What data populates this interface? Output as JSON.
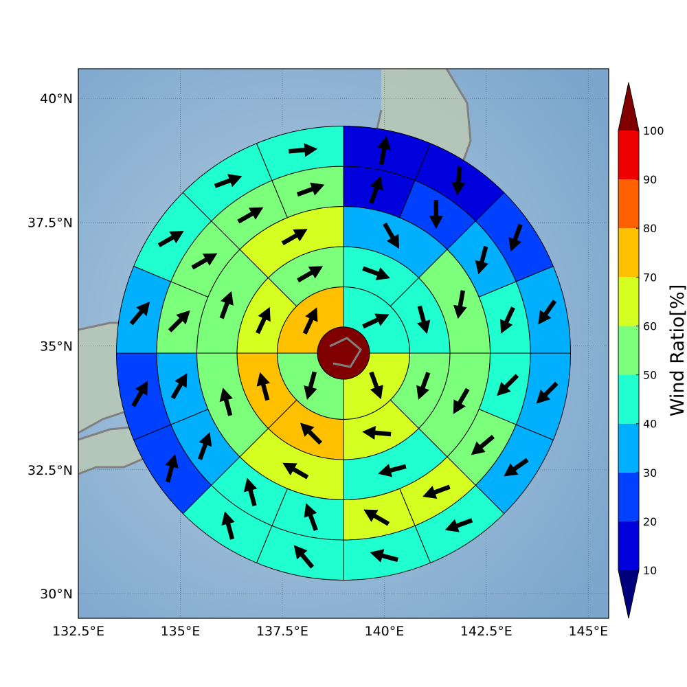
{
  "map": {
    "lon_range": [
      132.5,
      145.5
    ],
    "lat_range": [
      29.5,
      40.6
    ],
    "center": {
      "lon": 138.9,
      "lat": 35.1
    },
    "xtick_values": [
      132.5,
      135,
      137.5,
      140,
      142.5,
      145
    ],
    "ytick_values": [
      30,
      32.5,
      35,
      37.5,
      40
    ],
    "xtick_labels": [
      "132.5°E",
      "135°E",
      "137.5°E",
      "140°E",
      "142.5°E",
      "145°E"
    ],
    "ytick_labels": [
      "30°N",
      "32.5°N",
      "35°N",
      "37.5°N",
      "40°N"
    ],
    "grid": true,
    "colors": {
      "ocean": "#8db2d4",
      "land": "#a9bfae",
      "coastline": "#808080"
    }
  },
  "chart_data": {
    "type": "heatmap",
    "description_units": "Wind ratio in percent on polar grid; arrow direction in degrees (compass toward which the arrow points)",
    "rings": [
      1,
      2,
      3,
      4,
      5
    ],
    "sectors_per_ring": [
      4,
      8,
      8,
      16,
      16
    ],
    "values": [
      [
        45,
        62,
        55,
        75
      ],
      [
        45,
        45,
        55,
        62,
        72,
        72,
        62,
        55
      ],
      [
        35,
        55,
        55,
        45,
        62,
        55,
        55,
        62
      ],
      [
        15,
        25,
        35,
        45,
        45,
        55,
        62,
        62,
        45,
        45,
        35,
        35,
        55,
        55,
        58,
        55
      ],
      [
        18,
        18,
        25,
        35,
        35,
        35,
        45,
        45,
        45,
        45,
        25,
        25,
        35,
        45,
        45,
        45
      ]
    ],
    "arrow_directions": [
      [
        65,
        160,
        195,
        25
      ],
      [
        110,
        165,
        200,
        275,
        315,
        345,
        25,
        60
      ],
      [
        150,
        190,
        210,
        255,
        300,
        345,
        20,
        60
      ],
      [
        20,
        180,
        195,
        205,
        225,
        230,
        250,
        300,
        340,
        345,
        20,
        30,
        45,
        60,
        60,
        70
      ],
      [
        10,
        185,
        200,
        215,
        225,
        235,
        250,
        285,
        320,
        345,
        15,
        30,
        40,
        60,
        70,
        85
      ]
    ],
    "colorbar": {
      "label": "Wind Ratio[%]",
      "ticks": [
        "10",
        "20",
        "30",
        "40",
        "50",
        "60",
        "70",
        "80",
        "90",
        "100"
      ],
      "bounds": [
        10,
        20,
        30,
        40,
        50,
        60,
        70,
        80,
        90,
        100
      ],
      "colors": [
        "#0000dd",
        "#0040ff",
        "#00b0ff",
        "#20ffd0",
        "#7cff7a",
        "#d4ff20",
        "#ffc000",
        "#ff6000",
        "#ee0000"
      ],
      "under_color": "#00007f",
      "over_color": "#800000",
      "extend": "both"
    },
    "center_disk_value": 100
  }
}
